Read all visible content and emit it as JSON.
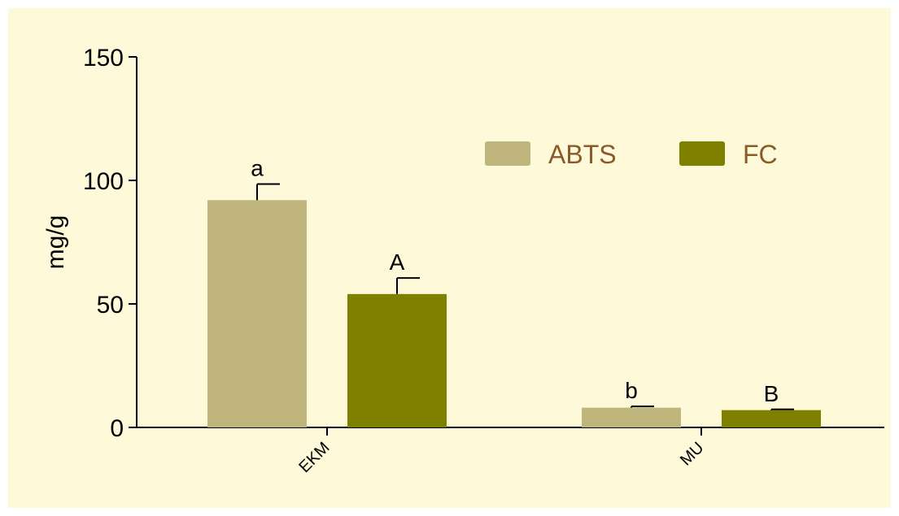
{
  "chart_data": {
    "type": "bar",
    "categories": [
      "EKM",
      "MU"
    ],
    "series": [
      {
        "name": "ABTS",
        "values": [
          92,
          8
        ],
        "errors": [
          6.5,
          0.5
        ],
        "color": "#c1b57e"
      },
      {
        "name": "FC",
        "values": [
          54,
          7
        ],
        "errors": [
          6.5,
          0.3
        ],
        "color": "#7f7f00"
      }
    ],
    "annotations": [
      [
        "a",
        "A"
      ],
      [
        "b",
        "B"
      ]
    ],
    "ylabel": "mg/g",
    "ylim": [
      0,
      150
    ],
    "yticks": [
      "0",
      "50",
      "100",
      "150"
    ],
    "grid": false,
    "legend_position": "top-right"
  },
  "colors": {
    "background": "#fdf9d9",
    "legend_text": "#8b5a2b",
    "axis": "#000000"
  }
}
